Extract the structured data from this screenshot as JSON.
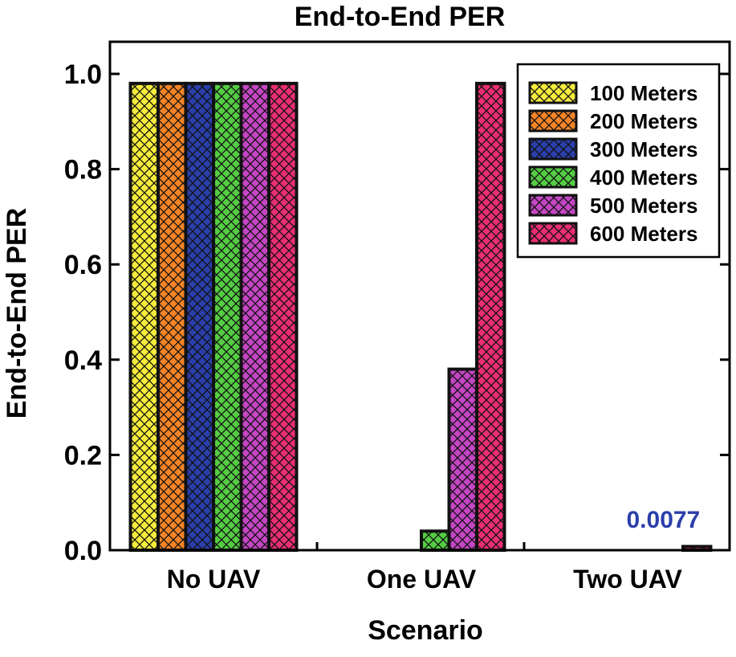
{
  "chart_data": {
    "type": "bar",
    "title": "End-to-End PER",
    "xlabel": "Scenario",
    "ylabel": "End-to-End PER",
    "categories": [
      "No UAV",
      "One UAV",
      "Two UAV"
    ],
    "ylim": [
      0.0,
      1.05
    ],
    "yticks": [
      0.0,
      0.2,
      0.4,
      0.6,
      0.8,
      1.0
    ],
    "ytick_labels": [
      "0.0",
      "0.2",
      "0.4",
      "0.6",
      "0.8",
      "1.0"
    ],
    "grid": false,
    "hatch": "crosshatch",
    "legend_position": "top-right",
    "series": [
      {
        "name": "100 Meters",
        "color": "#f5ec3c",
        "values": [
          0.98,
          0.0,
          0.0
        ]
      },
      {
        "name": "200 Meters",
        "color": "#f58427",
        "values": [
          0.98,
          0.0,
          0.0
        ]
      },
      {
        "name": "300 Meters",
        "color": "#2b3faa",
        "values": [
          0.98,
          0.0,
          0.0
        ]
      },
      {
        "name": "400 Meters",
        "color": "#55cc44",
        "values": [
          0.98,
          0.04,
          0.0
        ]
      },
      {
        "name": "500 Meters",
        "color": "#c446c4",
        "values": [
          0.98,
          0.38,
          0.0
        ]
      },
      {
        "name": "600 Meters",
        "color": "#ea2e73",
        "values": [
          0.98,
          0.98,
          0.0077
        ]
      }
    ],
    "annotations": [
      {
        "text": "0.0077",
        "category": "Two UAV",
        "series": "600 Meters",
        "color": "#2b3faa"
      }
    ]
  }
}
